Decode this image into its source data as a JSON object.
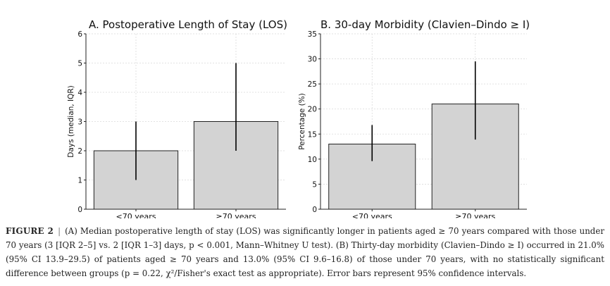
{
  "chart_data": [
    {
      "id": "A",
      "type": "bar",
      "title": "A. Postoperative Length of Stay (LOS)",
      "xlabel": "",
      "ylabel": "Days (median, IQR)",
      "categories": [
        "<70 years",
        "≥70 years"
      ],
      "values": [
        2,
        3
      ],
      "error_low": [
        1,
        2
      ],
      "error_high": [
        3,
        5
      ],
      "ylim": [
        0,
        6
      ],
      "yticks": [
        0,
        1,
        2,
        3,
        4,
        5,
        6
      ],
      "grid": true
    },
    {
      "id": "B",
      "type": "bar",
      "title": "B. 30-day Morbidity (Clavien–Dindo ≥ I)",
      "xlabel": "",
      "ylabel": "Percentage (%)",
      "categories": [
        "<70 years",
        "≥70 years"
      ],
      "values": [
        13.0,
        21.0
      ],
      "error_low": [
        9.6,
        13.9
      ],
      "error_high": [
        16.8,
        29.5
      ],
      "ylim": [
        0,
        35
      ],
      "yticks": [
        0,
        5,
        10,
        15,
        20,
        25,
        30,
        35
      ],
      "grid": true
    }
  ],
  "caption": {
    "label": "FIGURE 2",
    "separator": "|",
    "text": "(A) Median postoperative length of stay (LOS) was significantly longer in patients aged ≥ 70 years compared with those under 70 years (3 [IQR 2–5] vs. 2 [IQR 1–3] days, p < 0.001, Mann–Whitney U test). (B) Thirty-day morbidity (Clavien–Dindo ≥ I) occurred in 21.0% (95% CI 13.9–29.5) of patients aged ≥ 70 years and 13.0% (95% CI 9.6–16.8) of those under 70 years, with no statistically significant difference between groups (p = 0.22, χ²/Fisher's exact test as appropriate). Error bars represent 95% confidence intervals."
  }
}
